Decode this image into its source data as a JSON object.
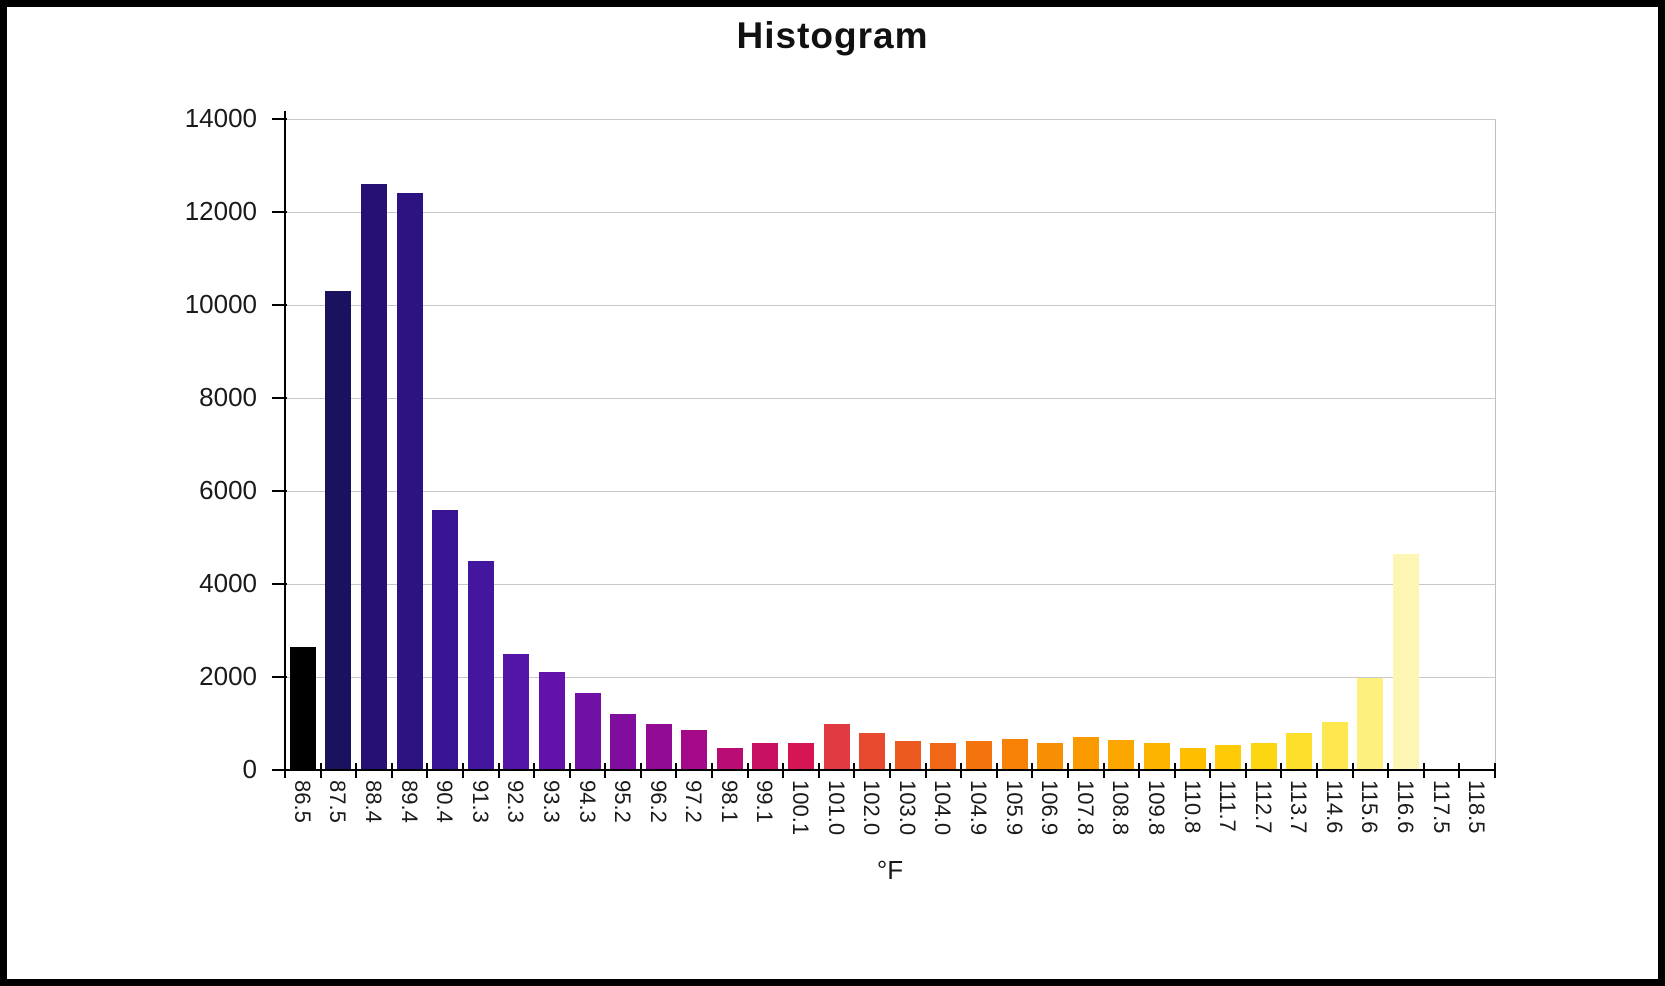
{
  "page": {
    "background_color": "#ffffff",
    "frame_color": "#000000"
  },
  "chart": {
    "title": "Histogram",
    "x_axis_title": "°F",
    "y_tick_labels": [
      "0",
      "2000",
      "4000",
      "6000",
      "8000",
      "10000",
      "12000",
      "14000"
    ],
    "gridline_color": "#c8c8c8",
    "axis_color": "#000000"
  },
  "chart_data": {
    "type": "bar",
    "title": "Histogram",
    "xlabel": "°F",
    "ylabel": "",
    "ylim": [
      0,
      14000
    ],
    "ytick_step": 2000,
    "grid": true,
    "legend": false,
    "categories": [
      "86.5",
      "87.5",
      "88.4",
      "89.4",
      "90.4",
      "91.3",
      "92.3",
      "93.3",
      "94.3",
      "95.2",
      "96.2",
      "97.2",
      "98.1",
      "99.1",
      "100.1",
      "101.0",
      "102.0",
      "103.0",
      "104.0",
      "104.9",
      "105.9",
      "106.9",
      "107.8",
      "108.8",
      "109.8",
      "110.8",
      "111.7",
      "112.7",
      "113.7",
      "114.6",
      "115.6",
      "116.6",
      "117.5",
      "118.5"
    ],
    "values": [
      2650,
      10300,
      12600,
      12400,
      5600,
      4500,
      2500,
      2100,
      1650,
      1200,
      1000,
      850,
      480,
      590,
      570,
      1000,
      800,
      620,
      570,
      620,
      670,
      590,
      700,
      650,
      590,
      480,
      530,
      590,
      790,
      1040,
      1980,
      4650,
      0,
      0
    ],
    "bar_colors": [
      "#000000",
      "#1a115f",
      "#241173",
      "#2d1282",
      "#381492",
      "#44169e",
      "#5315a7",
      "#6212a9",
      "#7110a5",
      "#810d9e",
      "#920b94",
      "#a40a88",
      "#b90c75",
      "#c91164",
      "#d61553",
      "#e13a43",
      "#e74a2e",
      "#ec5a20",
      "#f06715",
      "#f3740c",
      "#f68106",
      "#f88e02",
      "#fa9a00",
      "#fba700",
      "#fcb300",
      "#fdbf00",
      "#fecb06",
      "#fed513",
      "#fee02c",
      "#fee74f",
      "#fdf07e",
      "#fcf5b4",
      "#ffffff",
      "#ffffff"
    ]
  }
}
